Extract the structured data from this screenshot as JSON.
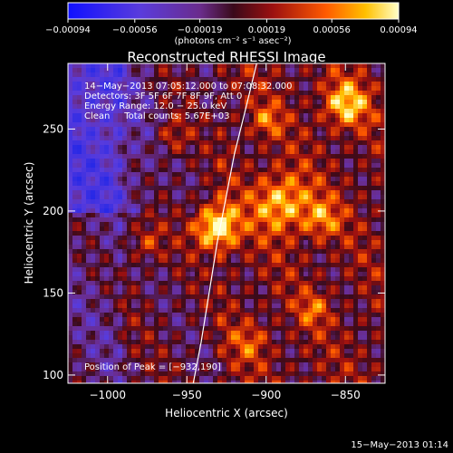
{
  "chart_data": {
    "type": "heatmap",
    "title": "Reconstructed RHESSI Image",
    "xlabel": "Heliocentric X (arcsec)",
    "ylabel": "Heliocentric Y (arcsec)",
    "xlim": [
      -1025,
      -825
    ],
    "ylim": [
      95,
      290
    ],
    "xticks": [
      -1000,
      -950,
      -900,
      -850
    ],
    "xtick_labels": [
      "−1000",
      "−950",
      "−900",
      "−850"
    ],
    "yticks": [
      100,
      150,
      200,
      250
    ],
    "ytick_labels": [
      "100",
      "150",
      "200",
      "250"
    ],
    "colorbar": {
      "range": [
        -0.00094,
        0.00094
      ],
      "ticks": [
        -0.00094,
        -0.00056,
        -0.00019,
        0.00019,
        0.00056,
        0.00094
      ],
      "tick_labels": [
        "−0.00094",
        "−0.00056",
        "−0.00019",
        "0.00019",
        "0.00056",
        "0.00094"
      ],
      "unit_label": "(photons cm⁻² s⁻¹ asec⁻²)"
    },
    "annotations": [
      "14−May−2013 07:05:12.000 to 07:08:32.000",
      "Detectors: 3F 5F 6F 7F 8F 9F, Att 0",
      "Energy Range: 12.0 − 25.0 keV",
      "Clean     Total counts: 5.67E+03"
    ],
    "peak_label": "Position of Peak = [−932,190]",
    "peak": [
      -932,
      190
    ],
    "limb_curve": [
      [
        -946,
        95
      ],
      [
        -941,
        120
      ],
      [
        -936,
        150
      ],
      [
        -931,
        180
      ],
      [
        -926,
        205
      ],
      [
        -920,
        235
      ],
      [
        -913,
        262
      ],
      [
        -906,
        290
      ]
    ],
    "grid": false,
    "footer": "15−May−2013 01:14"
  }
}
